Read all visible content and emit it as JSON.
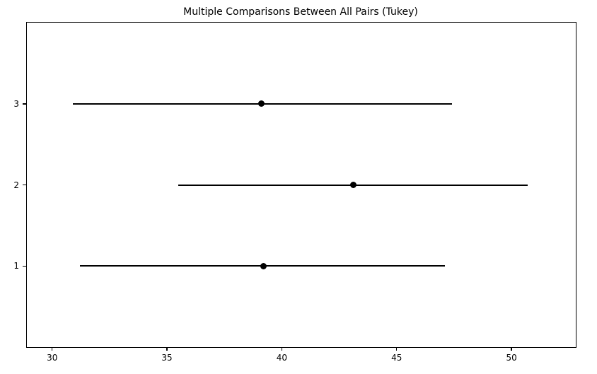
{
  "chart_data": {
    "type": "errorbar",
    "orientation": "horizontal",
    "title": "Multiple Comparisons Between All Pairs (Tukey)",
    "xlabel": "",
    "ylabel": "",
    "categories": [
      "1",
      "2",
      "3"
    ],
    "series": [
      {
        "group": "1",
        "y": 1,
        "mean": 39.2,
        "ci_low": 31.2,
        "ci_high": 47.1
      },
      {
        "group": "2",
        "y": 2,
        "mean": 43.1,
        "ci_low": 35.5,
        "ci_high": 50.7
      },
      {
        "group": "3",
        "y": 3,
        "mean": 39.1,
        "ci_low": 30.9,
        "ci_high": 47.4
      }
    ],
    "xlim": [
      28.9,
      52.8
    ],
    "ylim": [
      0,
      4
    ],
    "x_ticks": [
      30,
      35,
      40,
      45,
      50
    ],
    "y_ticks": [
      1,
      2,
      3
    ],
    "marker": "filled-circle",
    "line_color": "#000000",
    "marker_color": "#000000",
    "text_color": "#000000",
    "background": "#ffffff",
    "grid": false,
    "legend": null
  }
}
